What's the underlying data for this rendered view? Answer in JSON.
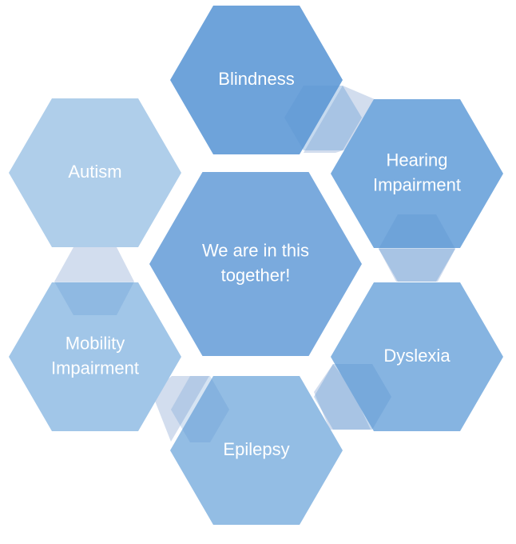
{
  "center": {
    "lines": [
      "We are in this",
      "together!"
    ],
    "color": "#7AAADD"
  },
  "nodes": [
    {
      "id": "blindness",
      "lines": [
        "Blindness"
      ],
      "color": "#6EA3DA"
    },
    {
      "id": "hearing-impairment",
      "lines": [
        "Hearing",
        "Impairment"
      ],
      "color": "#78ABDE"
    },
    {
      "id": "dyslexia",
      "lines": [
        "Dyslexia"
      ],
      "color": "#86B4E1"
    },
    {
      "id": "epilepsy",
      "lines": [
        "Epilepsy"
      ],
      "color": "#93BDE4"
    },
    {
      "id": "mobility-impairment",
      "lines": [
        "Mobility",
        "Impairment"
      ],
      "color": "#A1C6E8"
    },
    {
      "id": "autism",
      "lines": [
        "Autism"
      ],
      "color": "#AFCEEA"
    }
  ],
  "connector_color": "#D2DDEE"
}
